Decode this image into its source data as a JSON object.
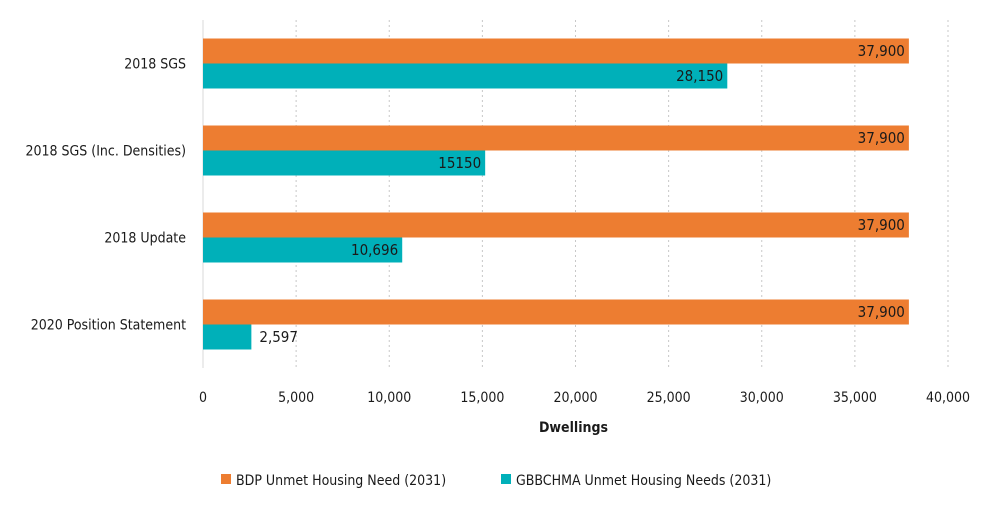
{
  "chart_data": {
    "type": "bar",
    "orientation": "horizontal",
    "categories": [
      "2018 SGS",
      "2018 SGS (Inc. Densities)",
      "2018 Update",
      "2020 Position Statement"
    ],
    "series": [
      {
        "name": "BDP Unmet Housing Need (2031)",
        "color": "#ed7d31",
        "values": [
          37900,
          37900,
          37900,
          37900
        ],
        "labels": [
          "37,900",
          "37,900",
          "37,900",
          "37,900"
        ]
      },
      {
        "name": "GBBCHMA Unmet Housing Needs (2031)",
        "color": "#00b0b9",
        "values": [
          28150,
          15150,
          10696,
          2597
        ],
        "labels": [
          "28,150",
          "15150",
          "10,696",
          "2,597"
        ]
      }
    ],
    "xlabel": "Dwellings",
    "ylabel": "",
    "xlim": [
      0,
      40000
    ],
    "xticks": [
      0,
      5000,
      10000,
      15000,
      20000,
      25000,
      30000,
      35000,
      40000
    ],
    "xtick_labels": [
      "0",
      "5,000",
      "10,000",
      "15,000",
      "20,000",
      "25,000",
      "30,000",
      "35,000",
      "40,000"
    ],
    "grid": "vertical-dashed",
    "legend": "bottom"
  }
}
